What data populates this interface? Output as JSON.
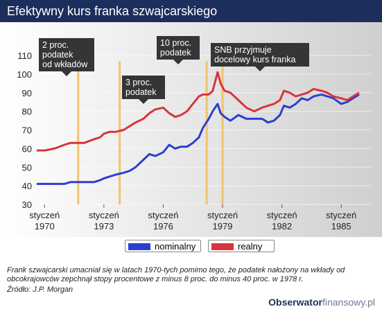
{
  "title": "Efektywny kurs franka szwajcarskiego",
  "callouts": [
    {
      "text1": "2 proc.",
      "text2": "podatek",
      "text3": "od wkładów"
    },
    {
      "text1": "3 proc.",
      "text2": "podatek"
    },
    {
      "text1": "10 proc.",
      "text2": "podatek"
    },
    {
      "text1": "SNB przyjmuje",
      "text2": "docelowy kurs franka"
    }
  ],
  "legend": {
    "nominal": "nominalny",
    "real": "realny"
  },
  "caption": "Frank szwajcarski umacniał się w latach 1970-tych pomimo tego, że podatek nałożony na wkłady od obcokrajowców zepchnął stopy procentowe z minus 8 proc. do minus 40 proc. w 1978 r.",
  "source": "Źródło: J.P. Morgan",
  "brand": {
    "part1": "Obserwator",
    "part2": "finansowy.pl"
  },
  "colors": {
    "nominal": "#2a3fcf",
    "real": "#d8343c",
    "event_line": "#f2c36b",
    "title_bg": "#1c2f5c"
  },
  "chart_data": {
    "type": "line",
    "title": "Efektywny kurs franka szwajcarskiego",
    "xlabel": "",
    "ylabel": "",
    "ylim": [
      30,
      110
    ],
    "yticks": [
      30,
      40,
      50,
      60,
      70,
      80,
      90,
      100,
      110
    ],
    "xlim": [
      1969.5,
      1986.5
    ],
    "xticks": [
      {
        "value": 1970,
        "label1": "styczeń",
        "label2": "1970"
      },
      {
        "value": 1973,
        "label1": "styczeń",
        "label2": "1973"
      },
      {
        "value": 1976,
        "label1": "styczeń",
        "label2": "1976"
      },
      {
        "value": 1979,
        "label1": "styczeń",
        "label2": "1979"
      },
      {
        "value": 1982,
        "label1": "styczeń",
        "label2": "1982"
      },
      {
        "value": 1985,
        "label1": "styczeń",
        "label2": "1985"
      }
    ],
    "event_lines": [
      1971.7,
      1973.8,
      1978.2,
      1979.0
    ],
    "series": [
      {
        "name": "nominalny",
        "x": [
          1969.6,
          1970.0,
          1970.5,
          1971.0,
          1971.3,
          1971.6,
          1972.0,
          1972.5,
          1972.8,
          1973.0,
          1973.3,
          1973.6,
          1974.0,
          1974.3,
          1974.6,
          1975.0,
          1975.3,
          1975.6,
          1976.0,
          1976.3,
          1976.6,
          1976.9,
          1977.2,
          1977.5,
          1977.8,
          1978.0,
          1978.3,
          1978.5,
          1978.75,
          1978.9,
          1979.1,
          1979.4,
          1979.8,
          1980.2,
          1980.6,
          1981.0,
          1981.3,
          1981.6,
          1981.9,
          1982.1,
          1982.4,
          1982.7,
          1983.0,
          1983.3,
          1983.6,
          1984.0,
          1984.3,
          1984.6,
          1985.0,
          1985.3,
          1985.6,
          1985.9
        ],
        "y": [
          41,
          41,
          41,
          41,
          42,
          42,
          42,
          42,
          43,
          44,
          45,
          46,
          47,
          48,
          50,
          54,
          57,
          56,
          58,
          62,
          60,
          61,
          61,
          63,
          66,
          71,
          76,
          80,
          84,
          79,
          77,
          75,
          78,
          76,
          76,
          76,
          74,
          75,
          78,
          83,
          82,
          84,
          87,
          86,
          88,
          89,
          88,
          87,
          84,
          85,
          87,
          89
        ]
      },
      {
        "name": "realny",
        "x": [
          1969.6,
          1970.0,
          1970.5,
          1971.0,
          1971.3,
          1971.6,
          1972.0,
          1972.5,
          1972.8,
          1973.0,
          1973.3,
          1973.6,
          1974.0,
          1974.3,
          1974.6,
          1975.0,
          1975.3,
          1975.6,
          1976.0,
          1976.3,
          1976.6,
          1976.9,
          1977.2,
          1977.5,
          1977.8,
          1978.0,
          1978.3,
          1978.5,
          1978.75,
          1978.9,
          1979.1,
          1979.4,
          1979.8,
          1980.2,
          1980.6,
          1981.0,
          1981.3,
          1981.6,
          1981.9,
          1982.1,
          1982.4,
          1982.7,
          1983.0,
          1983.3,
          1983.6,
          1984.0,
          1984.3,
          1984.6,
          1985.0,
          1985.3,
          1985.6,
          1985.9
        ],
        "y": [
          59,
          59,
          60,
          62,
          63,
          63,
          63,
          65,
          66,
          68,
          69,
          69,
          70,
          72,
          74,
          76,
          79,
          81,
          82,
          79,
          77,
          78,
          80,
          84,
          88,
          89,
          89,
          91,
          101,
          95,
          91,
          90,
          86,
          82,
          80,
          82,
          83,
          84,
          86,
          91,
          90,
          88,
          89,
          90,
          92,
          91,
          90,
          88,
          87,
          86,
          88,
          90
        ]
      }
    ]
  }
}
